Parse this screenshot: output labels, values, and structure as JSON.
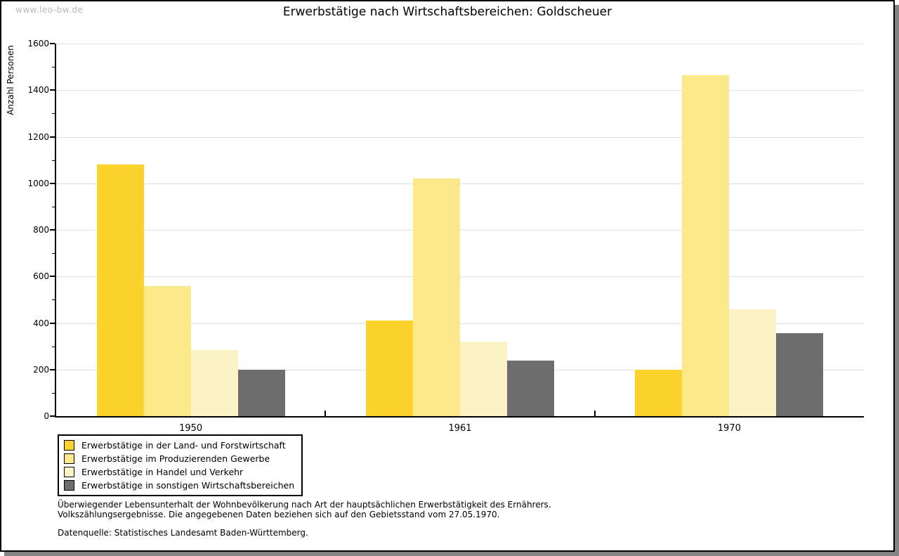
{
  "watermark": "www.leo-bw.de",
  "chart_data": {
    "type": "bar",
    "title": "Erwerbstätige nach Wirtschaftsbereichen: Goldscheuer",
    "ylabel": "Anzahl Personen",
    "xlabel": "",
    "categories": [
      "1950",
      "1961",
      "1970"
    ],
    "series": [
      {
        "name": "Erwerbstätige in der Land- und Forstwirtschaft",
        "color": "#fcd32d",
        "values": [
          1080,
          410,
          200
        ]
      },
      {
        "name": "Erwerbstätige im Produzierenden Gewerbe",
        "color": "#fbe88b",
        "values": [
          560,
          1020,
          1465
        ]
      },
      {
        "name": "Erwerbstätige in Handel und Verkehr",
        "color": "#fcf3c5",
        "values": [
          285,
          320,
          460
        ]
      },
      {
        "name": "Erwerbstätige in sonstigen Wirtschaftsbereichen",
        "color": "#6d6d6d",
        "values": [
          200,
          240,
          355
        ]
      }
    ],
    "ylim": [
      0,
      1600
    ],
    "ytick_step": 200,
    "ytick_minor_step": 100,
    "grid": true,
    "legend_position": "bottom-left"
  },
  "notes": {
    "line1": "Überwiegender Lebensunterhalt der Wohnbevölkerung nach Art der hauptsächlichen Erwerbstätigkeit des Ernährers.",
    "line2": "Volkszählungsergebnisse. Die angegebenen Daten beziehen sich auf den Gebietsstand vom 27.05.1970.",
    "source": "Datenquelle: Statistisches Landesamt Baden-Württemberg."
  }
}
